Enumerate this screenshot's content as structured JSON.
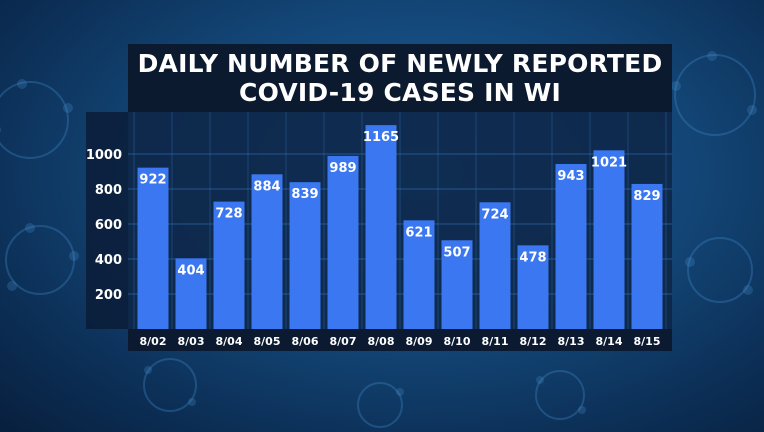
{
  "title": {
    "line1": "DAILY NUMBER OF NEWLY REPORTED",
    "line2": "COVID-19 CASES IN WI"
  },
  "colors": {
    "bar": "#3a77f0",
    "plot_background": "#0e2547",
    "title_band": "#0c1a2f",
    "grid": "#2d6aa8",
    "text": "#ffffff"
  },
  "chart_data": {
    "type": "bar",
    "title": "DAILY NUMBER OF NEWLY REPORTED COVID-19 CASES IN WI",
    "categories": [
      "8/02",
      "8/03",
      "8/04",
      "8/05",
      "8/06",
      "8/07",
      "8/08",
      "8/09",
      "8/10",
      "8/11",
      "8/12",
      "8/13",
      "8/14",
      "8/15"
    ],
    "values": [
      922,
      404,
      728,
      884,
      839,
      989,
      1165,
      621,
      507,
      724,
      478,
      943,
      1021,
      829
    ],
    "y_ticks": [
      200,
      400,
      600,
      800,
      1000
    ],
    "ylim": [
      0,
      1200
    ],
    "xlabel": "",
    "ylabel": "",
    "data_labels": true,
    "grid": true,
    "legend": "none"
  }
}
